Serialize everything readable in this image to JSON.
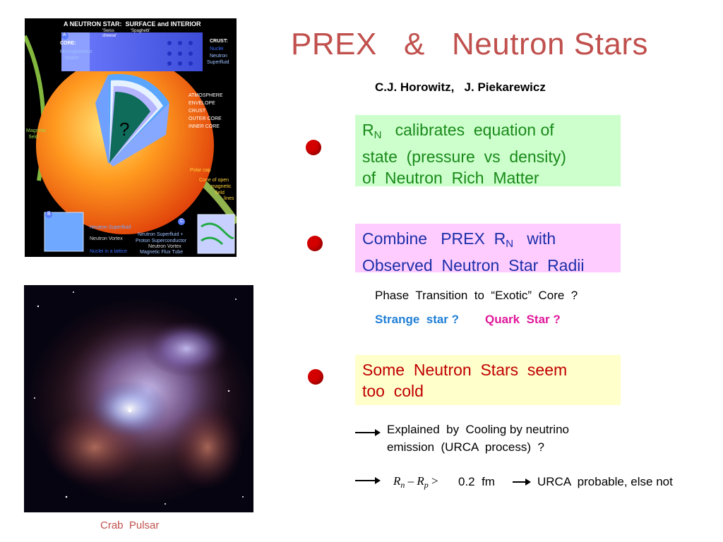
{
  "title": "PREX   &   Neutron Stars",
  "authors": "C.J. Horowitz,   J. Piekarewicz",
  "bullet1": {
    "r": "R",
    "sub": "N",
    "line1_rest": "   calibrates  equation of",
    "line2": "state  (pressure  vs  density)",
    "line3": "of  Neutron  Rich  Matter"
  },
  "bullet2": {
    "line1_a": "Combine   PREX  R",
    "sub": "N",
    "line1_b": "   with",
    "line2": "Observed  Neutron  Star  Radii"
  },
  "phase_transition": "Phase  Transition  to  “Exotic”  Core  ?",
  "strange_star": "Strange  star ?",
  "quark_star": "Quark  Star ?",
  "bullet3": {
    "line1": "Some  Neutron  Stars  seem",
    "line2": "too  cold"
  },
  "explained": {
    "line1": "Explained  by  Cooling by neutrino",
    "line2": "emission  (URCA  process)  ?"
  },
  "urca": {
    "rn": "R",
    "n": "n",
    "minus": " – ",
    "rp": "R",
    "p": "p",
    "gt": " >  ",
    "value": "0.2  fm",
    "result": "URCA  probable, else not"
  },
  "neutron_star_image": {
    "header": "A NEUTRON STAR:  SURFACE and INTERIOR",
    "core_label": "CORE:",
    "core_desc1": "Homogeneous",
    "core_desc2": "Matter",
    "swiss": "'Swiss",
    "cheese": "cheese'",
    "spaghetti": "'Spaghetti'",
    "crust_label": "CRUST:",
    "crust_nuclei": "Nuclei",
    "crust_sf1": "Neutron",
    "crust_sf2": "Superfluid",
    "layers": [
      "ATMOSPHERE",
      "ENVELOPE",
      "CRUST",
      "OUTER CORE",
      "INNER CORE"
    ],
    "question": "?",
    "magnetic1": "Magnetic",
    "magnetic2": "field",
    "polar_cap": "Polar cap",
    "cone": [
      "Cone of open",
      "magnetic",
      "field",
      "lines"
    ],
    "a": "A",
    "b": "B",
    "c": "C",
    "b_labels": [
      "Neutron Superfluid",
      "Neutron Vortex",
      "Nuclei in a lattice"
    ],
    "c_labels": [
      "Neutron Superfluid +",
      "Proton Superconductor",
      "Neutron Vortex",
      "Magnetic Flux Tube"
    ]
  },
  "crab_caption": "Crab  Pulsar",
  "colors": {
    "title": "#c0504d",
    "green_text": "#1a8a1a",
    "blue_text": "#1b2fa8",
    "red_text": "#c00000",
    "strange": "#1f7fd6",
    "quark": "#e0189a",
    "bullet": "#d40000"
  }
}
